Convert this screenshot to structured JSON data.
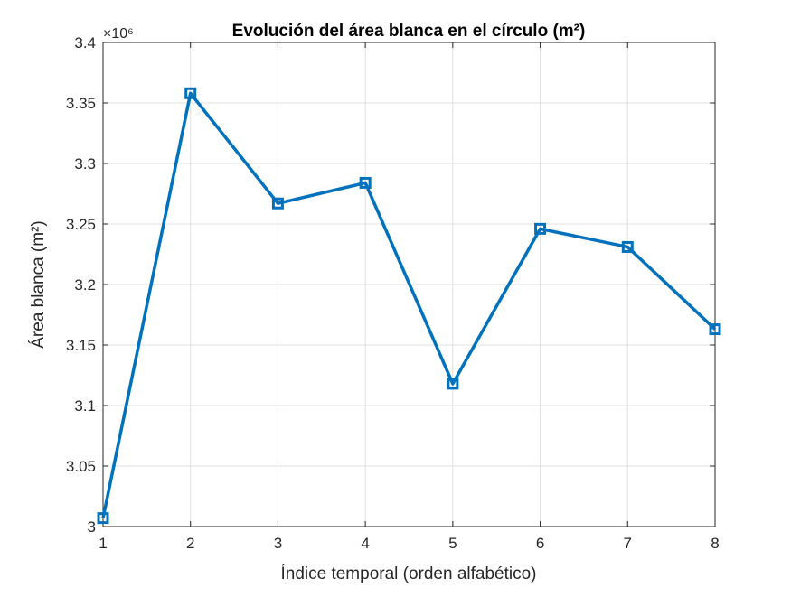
{
  "chart_data": {
    "type": "line",
    "title": "Evolución del área blanca en el círculo (m²)",
    "xlabel": "Índice temporal (orden alfabético)",
    "ylabel": "Área blanca (m²)",
    "y_exponent_label": "×10⁶",
    "x": [
      1,
      2,
      3,
      4,
      5,
      6,
      7,
      8
    ],
    "series": [
      {
        "values": [
          3007000,
          3358000,
          3267000,
          3284000,
          3118000,
          3246000,
          3231000,
          3163000
        ],
        "color": "#0072BD",
        "marker": "square"
      }
    ],
    "xlim": [
      1,
      8
    ],
    "ylim": [
      3000000,
      3400000
    ],
    "xticks": [
      1,
      2,
      3,
      4,
      5,
      6,
      7,
      8
    ],
    "xtick_labels": [
      "1",
      "2",
      "3",
      "4",
      "5",
      "6",
      "7",
      "8"
    ],
    "yticks": [
      3000000,
      3050000,
      3100000,
      3150000,
      3200000,
      3250000,
      3300000,
      3350000,
      3400000
    ],
    "ytick_labels": [
      "3",
      "3.05",
      "3.1",
      "3.15",
      "3.2",
      "3.25",
      "3.3",
      "3.35",
      "3.4"
    ],
    "grid": true,
    "legend": false
  }
}
